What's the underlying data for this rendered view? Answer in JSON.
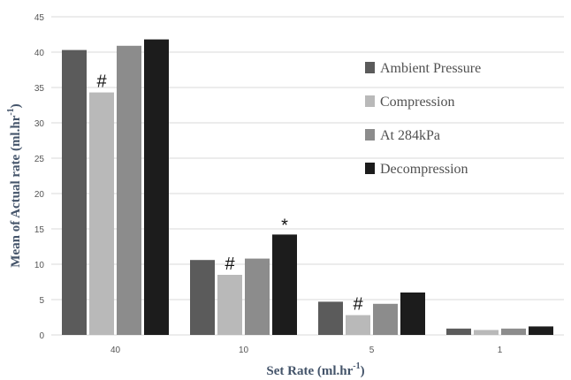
{
  "chart_data": {
    "type": "bar",
    "title": "",
    "xlabel": "Set Rate (ml.hr",
    "xlabel_sup": "-1",
    "xlabel_end": ")",
    "ylabel": "Mean of Actual rate (ml.hr",
    "ylabel_sup": "-1",
    "ylabel_end": ")",
    "ylim": [
      0,
      45
    ],
    "yticks": [
      0,
      5,
      10,
      15,
      20,
      25,
      30,
      35,
      40,
      45
    ],
    "grid": true,
    "legend_position": "right",
    "categories": [
      "40",
      "10",
      "5",
      "1"
    ],
    "series": [
      {
        "name": "Ambient Pressure",
        "color": "#5b5b5b",
        "values": [
          40.3,
          10.6,
          4.7,
          0.9
        ]
      },
      {
        "name": "Compression",
        "color": "#b9b9b9",
        "values": [
          34.3,
          8.5,
          2.8,
          0.7
        ]
      },
      {
        "name": "At 284kPa",
        "color": "#8c8c8c",
        "values": [
          40.9,
          10.8,
          4.4,
          0.9
        ]
      },
      {
        "name": "Decompression",
        "color": "#1c1c1c",
        "values": [
          41.8,
          14.2,
          6.0,
          1.2
        ]
      }
    ],
    "annotations": [
      {
        "text": "#",
        "category": 0,
        "series": 1
      },
      {
        "text": "#",
        "category": 1,
        "series": 1
      },
      {
        "text": "*",
        "category": 1,
        "series": 3
      },
      {
        "text": "#",
        "category": 2,
        "series": 1
      }
    ]
  }
}
